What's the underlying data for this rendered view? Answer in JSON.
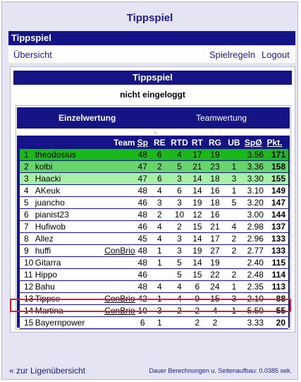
{
  "app_title": "Tippspiel",
  "section_title": "Tippspiel",
  "nav": {
    "overview": "Übersicht",
    "rules": "Spielregeln",
    "logout": "Logout"
  },
  "panel_title": "Tippspiel",
  "login_status": "nicht eingeloggt",
  "tabs": {
    "single": "Einzelwertung",
    "team": "Teamwertung"
  },
  "table": {
    "headers": {
      "team": "Team",
      "sp": "Sp",
      "re": "RE",
      "rtd": "RTD",
      "rt": "RT",
      "rg": "RG",
      "ub": "UB",
      "avg": "SpØ",
      "pts": "Pkt."
    },
    "rows": [
      {
        "rank": "1",
        "name": "theodosius",
        "team": "",
        "sp": "48",
        "re": "6",
        "rtd": "4",
        "rt": "17",
        "rg": "19",
        "ub": "",
        "avg": "3.56",
        "pts": "171"
      },
      {
        "rank": "2",
        "name": "kolbi",
        "team": "",
        "sp": "47",
        "re": "2",
        "rtd": "5",
        "rt": "21",
        "rg": "23",
        "ub": "1",
        "avg": "3.36",
        "pts": "158"
      },
      {
        "rank": "3",
        "name": "Haacki",
        "team": "",
        "sp": "47",
        "re": "6",
        "rtd": "3",
        "rt": "14",
        "rg": "18",
        "ub": "3",
        "avg": "3.30",
        "pts": "155"
      },
      {
        "rank": "4",
        "name": "AKeuk",
        "team": "",
        "sp": "48",
        "re": "4",
        "rtd": "6",
        "rt": "14",
        "rg": "16",
        "ub": "1",
        "avg": "3.10",
        "pts": "149"
      },
      {
        "rank": "5",
        "name": "juancho",
        "team": "",
        "sp": "46",
        "re": "3",
        "rtd": "3",
        "rt": "19",
        "rg": "18",
        "ub": "5",
        "avg": "3.20",
        "pts": "147"
      },
      {
        "rank": "6",
        "name": "pianist23",
        "team": "",
        "sp": "48",
        "re": "2",
        "rtd": "10",
        "rt": "12",
        "rg": "16",
        "ub": "",
        "avg": "3.00",
        "pts": "144"
      },
      {
        "rank": "7",
        "name": "Hufiwob",
        "team": "",
        "sp": "46",
        "re": "4",
        "rtd": "2",
        "rt": "15",
        "rg": "21",
        "ub": "4",
        "avg": "2.98",
        "pts": "137"
      },
      {
        "rank": "8",
        "name": "Allez",
        "team": "",
        "sp": "45",
        "re": "4",
        "rtd": "3",
        "rt": "14",
        "rg": "17",
        "ub": "2",
        "avg": "2.96",
        "pts": "133"
      },
      {
        "rank": "9",
        "name": "huffi",
        "team": "ConBrio",
        "sp": "48",
        "re": "1",
        "rtd": "3",
        "rt": "19",
        "rg": "27",
        "ub": "2",
        "avg": "2.77",
        "pts": "133"
      },
      {
        "rank": "10",
        "name": "Gitarra",
        "team": "",
        "sp": "48",
        "re": "1",
        "rtd": "5",
        "rt": "14",
        "rg": "19",
        "ub": "",
        "avg": "2.40",
        "pts": "115"
      },
      {
        "rank": "11",
        "name": "Hippo",
        "team": "",
        "sp": "46",
        "re": "",
        "rtd": "5",
        "rt": "15",
        "rg": "22",
        "ub": "2",
        "avg": "2.48",
        "pts": "114"
      },
      {
        "rank": "12",
        "name": "Bahu",
        "team": "",
        "sp": "48",
        "re": "4",
        "rtd": "4",
        "rt": "6",
        "rg": "24",
        "ub": "1",
        "avg": "2.35",
        "pts": "113"
      },
      {
        "rank": "13",
        "name": "Tippse",
        "team": "ConBrio",
        "sp": "42",
        "re": "1",
        "rtd": "4",
        "rt": "9",
        "rg": "15",
        "ub": "3",
        "avg": "2.10",
        "pts": "88"
      },
      {
        "rank": "14",
        "name": "Martina",
        "team": "ConBrio",
        "sp": "10",
        "re": "3",
        "rtd": "2",
        "rt": "2",
        "rg": "4",
        "ub": "1",
        "avg": "5.50",
        "pts": "55"
      },
      {
        "rank": "15",
        "name": "Bayernpower",
        "team": "",
        "sp": "6",
        "re": "1",
        "rtd": "",
        "rt": "2",
        "rg": "2",
        "ub": "",
        "avg": "3.33",
        "pts": "20"
      }
    ]
  },
  "footer": {
    "back_link": "« zur Ligenübersicht",
    "timing": "Dauer Berechnungen u. Seitenaufbau: 0.0385 sek."
  },
  "colors": {
    "header_blue": "#141487",
    "rank1_green": "#1bb81b",
    "rank2_green": "#69d469",
    "rank3_green": "#a8f0a8",
    "highlight_red": "#e8141e"
  }
}
